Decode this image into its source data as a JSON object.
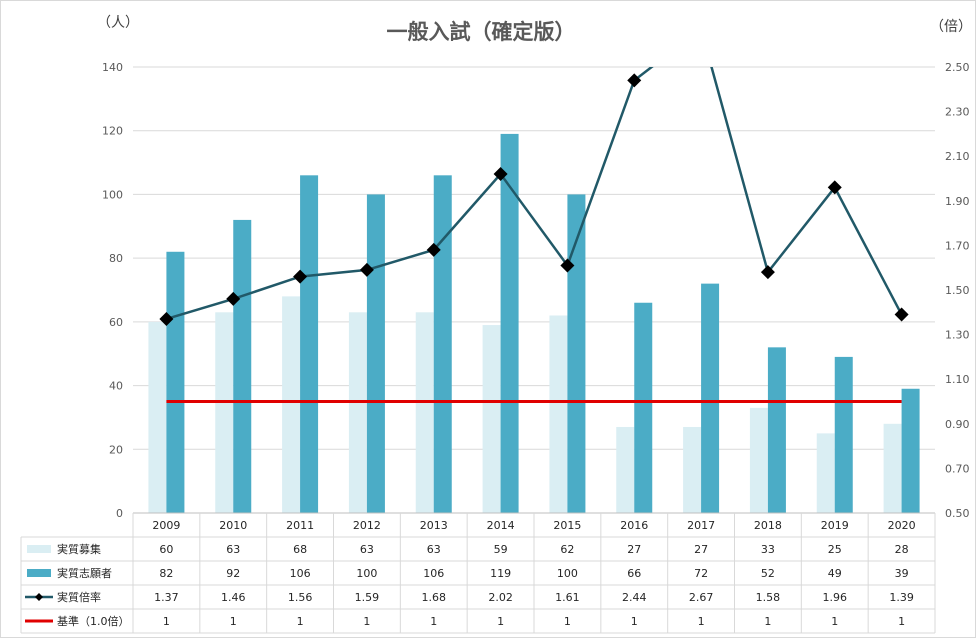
{
  "chart_data": {
    "type": "bar",
    "title": "一般入試（確定版）",
    "ylabel_left": "（人）",
    "ylabel_right": "（倍）",
    "categories": [
      "2009",
      "2010",
      "2011",
      "2012",
      "2013",
      "2014",
      "2015",
      "2016",
      "2017",
      "2018",
      "2019",
      "2020"
    ],
    "ylim_left": [
      0,
      140
    ],
    "yticks_left": [
      "0",
      "20",
      "40",
      "60",
      "80",
      "100",
      "120",
      "140"
    ],
    "ylim_right": [
      0.5,
      2.5
    ],
    "yticks_right": [
      "0.50",
      "0.70",
      "0.90",
      "1.10",
      "1.30",
      "1.50",
      "1.70",
      "1.90",
      "2.10",
      "2.30",
      "2.50"
    ],
    "grid": true,
    "legend": "data-table-left",
    "series": [
      {
        "name": "実質募集",
        "kind": "bar",
        "axis": "left",
        "color": "#daeef3",
        "values": [
          60,
          63,
          68,
          63,
          63,
          59,
          62,
          27,
          27,
          33,
          25,
          28
        ],
        "labels": [
          "60",
          "63",
          "68",
          "63",
          "63",
          "59",
          "62",
          "27",
          "27",
          "33",
          "25",
          "28"
        ]
      },
      {
        "name": "実質志願者",
        "kind": "bar",
        "axis": "left",
        "color": "#4bacc6",
        "values": [
          82,
          92,
          106,
          100,
          106,
          119,
          100,
          66,
          72,
          52,
          49,
          39
        ],
        "labels": [
          "82",
          "92",
          "106",
          "100",
          "106",
          "119",
          "100",
          "66",
          "72",
          "52",
          "49",
          "39"
        ]
      },
      {
        "name": "実質倍率",
        "kind": "line",
        "axis": "right",
        "color": "#215968",
        "marker": "diamond",
        "values": [
          1.37,
          1.46,
          1.56,
          1.59,
          1.68,
          2.02,
          1.61,
          2.44,
          2.67,
          1.58,
          1.96,
          1.39
        ],
        "labels": [
          "1.37",
          "1.46",
          "1.56",
          "1.59",
          "1.68",
          "2.02",
          "1.61",
          "2.44",
          "2.67",
          "1.58",
          "1.96",
          "1.39"
        ]
      },
      {
        "name": "基準（1.0倍）",
        "kind": "line",
        "axis": "right",
        "color": "#e00000",
        "values": [
          1,
          1,
          1,
          1,
          1,
          1,
          1,
          1,
          1,
          1,
          1,
          1
        ],
        "labels": [
          "1",
          "1",
          "1",
          "1",
          "1",
          "1",
          "1",
          "1",
          "1",
          "1",
          "1",
          "1"
        ]
      }
    ]
  }
}
